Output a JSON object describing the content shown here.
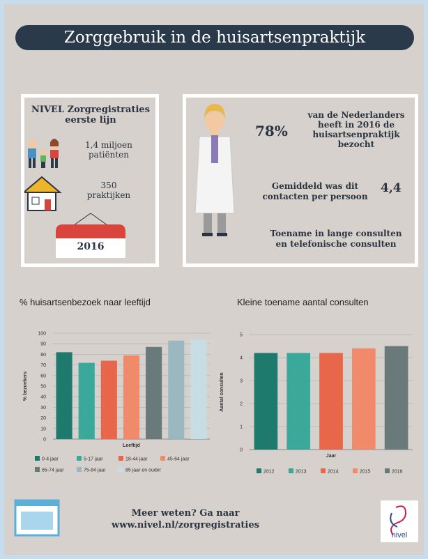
{
  "header": {
    "title": "Zorggebruik in de huisartsenpraktijk"
  },
  "registration": {
    "title": [
      "NIVEL Zorgregistraties",
      "eerste lijn"
    ],
    "patients": [
      "1,4 miljoen",
      "patiënten"
    ],
    "practices": [
      "350",
      "praktijken"
    ],
    "year": "2016"
  },
  "facts": {
    "percentage": "78%",
    "visited": [
      "van de Nederlanders",
      "heeft in 2016 de",
      "huisartsenpraktijk",
      "bezocht"
    ],
    "average_text": [
      "Gemiddeld was dit",
      "contacten per persoon"
    ],
    "average_value": "4,4",
    "increase": [
      "Toename in lange consulten",
      "en telefonische consulten"
    ]
  },
  "chart_data": [
    {
      "type": "bar",
      "title": "% huisartsenbezoek naar leeftijd",
      "ylabel": "% bezoekers",
      "xlabel": "Leeftijd",
      "categories": [
        "0-4 jaar",
        "5-17 jaar",
        "18-44 jaar",
        "45-64 jaar",
        "65-74 jaar",
        "75-84 jaar",
        "85 jaar en ouder"
      ],
      "values": [
        82,
        72,
        74,
        79,
        87,
        93,
        94
      ],
      "colors": [
        "#1f7a6e",
        "#3aa89a",
        "#e8674a",
        "#f08a6a",
        "#6a7a7a",
        "#9bb8c0",
        "#c8dde3"
      ],
      "ylim": [
        0,
        100
      ],
      "yticks": [
        0,
        10,
        20,
        30,
        40,
        50,
        60,
        70,
        80,
        90,
        100
      ],
      "grid": true
    },
    {
      "type": "bar",
      "title": "Kleine toename aantal consulten",
      "ylabel": "Aantal consulten",
      "xlabel": "Jaar",
      "categories": [
        "2012",
        "2013",
        "2014",
        "2015",
        "2016"
      ],
      "values": [
        4.2,
        4.2,
        4.2,
        4.4,
        4.5
      ],
      "colors": [
        "#1f7a6e",
        "#3aa89a",
        "#e8674a",
        "#f08a6a",
        "#6a7a7a"
      ],
      "ylim": [
        0,
        5
      ],
      "yticks": [
        0,
        1,
        2,
        3,
        4,
        5
      ],
      "grid": true
    }
  ],
  "footer": {
    "text": "Meer weten? Ga naar",
    "url": "www.nivel.nl/zorgregistraties",
    "logo": "nivel"
  }
}
